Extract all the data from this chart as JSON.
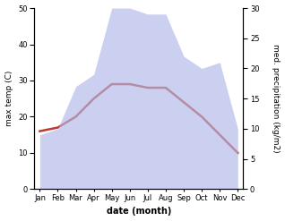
{
  "months": [
    "Jan",
    "Feb",
    "Mar",
    "Apr",
    "May",
    "Jun",
    "Jul",
    "Aug",
    "Sep",
    "Oct",
    "Nov",
    "Dec"
  ],
  "temp": [
    16,
    17,
    20,
    25,
    29,
    29,
    28,
    28,
    24,
    20,
    15,
    10
  ],
  "precip": [
    9,
    10,
    17,
    19,
    30,
    30,
    29,
    29,
    22,
    20,
    21,
    10
  ],
  "temp_ylim": [
    0,
    50
  ],
  "precip_ylim": [
    0,
    30
  ],
  "temp_yticks": [
    0,
    10,
    20,
    30,
    40,
    50
  ],
  "precip_yticks": [
    0,
    5,
    10,
    15,
    20,
    25,
    30
  ],
  "fill_color": "#b0b8e8",
  "fill_alpha": 0.65,
  "line_color": "#c0392b",
  "line_width": 1.8,
  "xlabel": "date (month)",
  "ylabel_left": "max temp (C)",
  "ylabel_right": "med. precipitation (kg/m2)",
  "background_color": "#ffffff"
}
